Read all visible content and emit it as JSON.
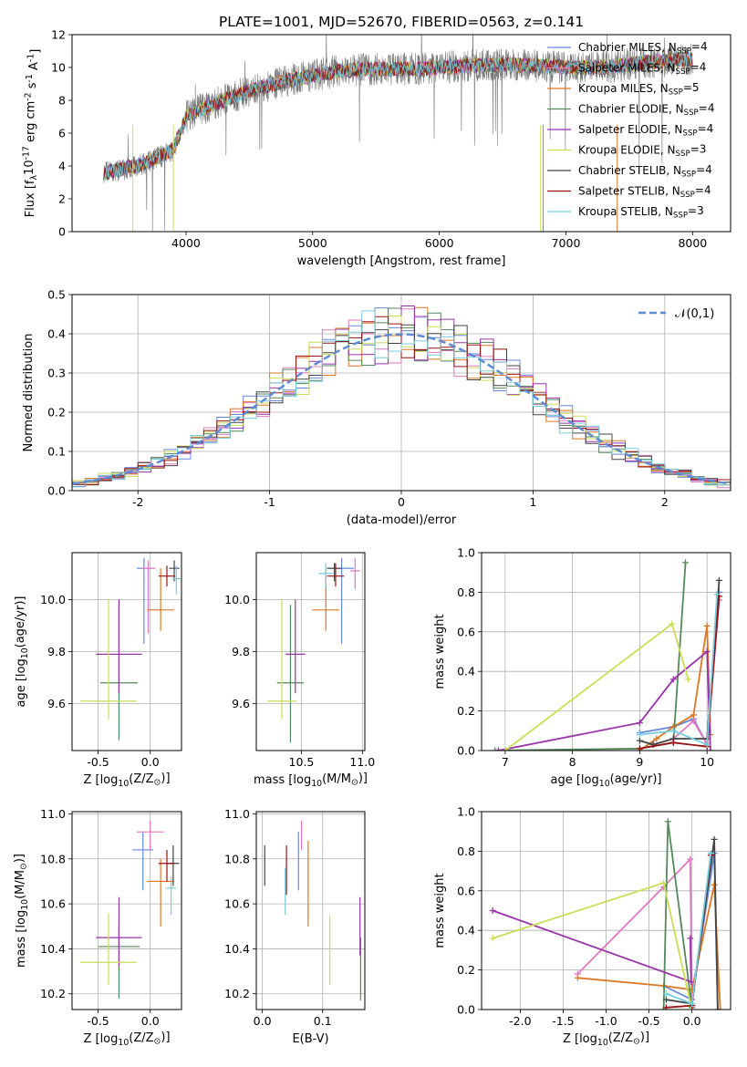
{
  "figure_title": "PLATE=1001, MJD=52670, FIBERID=0563, z=0.141",
  "colors": {
    "Chabrier MILES": "#6688dd",
    "Salpeter MILES": "#e377c2",
    "Kroupa MILES": "#dd7722",
    "Chabrier ELODIE": "#55885a",
    "Salpeter ELODIE": "#9933aa",
    "Kroupa ELODIE": "#ccdd55",
    "Chabrier STELIB": "#444444",
    "Salpeter STELIB": "#991111",
    "Kroupa STELIB": "#77ccdd"
  },
  "chart_data": [
    {
      "id": "spectrum",
      "type": "line",
      "title": "",
      "xlabel": "wavelength [Angstrom, rest frame]",
      "ylabel": "Flux [f$_\\lambda$10$^{-17}$ erg cm$^{-2}$ s$^{-1}$ A$^{-1}$]",
      "xlim": [
        3100,
        8300
      ],
      "ylim": [
        0,
        12
      ],
      "xticks": [
        4000,
        5000,
        6000,
        7000,
        8000
      ],
      "yticks": [
        0,
        2,
        4,
        6,
        8,
        10,
        12
      ],
      "grid": false,
      "legend": "right",
      "data_envelope": {
        "wavelength": [
          3350,
          3500,
          3700,
          3900,
          4000,
          4100,
          4300,
          4500,
          4800,
          5000,
          5200,
          5500,
          5800,
          6000,
          6200,
          6500,
          6800,
          7000,
          7300,
          7600,
          8000
        ],
        "model_flux": [
          3.6,
          3.8,
          4.2,
          5.0,
          7.0,
          7.4,
          8.0,
          8.6,
          9.2,
          9.5,
          9.8,
          9.9,
          9.9,
          10.0,
          10.1,
          10.2,
          10.1,
          10.0,
          10.0,
          10.3,
          10.5
        ]
      },
      "series": [
        {
          "name": "Chabrier MILES, N$_{SSP}$=4"
        },
        {
          "name": "Salpeter MILES, N$_{SSP}$=4"
        },
        {
          "name": "Kroupa MILES, N$_{SSP}$=5"
        },
        {
          "name": "Chabrier ELODIE, N$_{SSP}$=4"
        },
        {
          "name": "Salpeter ELODIE, N$_{SSP}$=4"
        },
        {
          "name": "Kroupa ELODIE, N$_{SSP}$=3"
        },
        {
          "name": "Chabrier STELIB, N$_{SSP}$=4"
        },
        {
          "name": "Salpeter STELIB, N$_{SSP}$=4"
        },
        {
          "name": "Kroupa STELIB, N$_{SSP}$=3"
        }
      ]
    },
    {
      "id": "residuals",
      "type": "line",
      "xlabel": "(data-model)/error",
      "ylabel": "Normed distribution",
      "xlim": [
        -2.5,
        2.5
      ],
      "ylim": [
        0,
        0.5
      ],
      "xticks": [
        -2,
        -1,
        0,
        1,
        2
      ],
      "yticks": [
        0.0,
        0.1,
        0.2,
        0.3,
        0.4,
        0.5
      ],
      "grid": true,
      "legend": "top-right",
      "reference_curve": {
        "name": "$\\mathcal{N}(0,1)$",
        "mean": 0,
        "sigma": 1
      },
      "bin_width": 0.1,
      "approx_histogram_envelope": "normal(0,1) with scatter ~0.03"
    },
    {
      "id": "age_vs_Z",
      "type": "scatter",
      "xlabel": "Z [log$_{10}$(Z/Z$_\\odot$)]",
      "ylabel": "age  [log$_{10}$(age/yr)]",
      "xlim": [
        -0.75,
        0.3
      ],
      "ylim": [
        9.42,
        10.18
      ],
      "xticks": [
        -0.5,
        0.0
      ],
      "yticks": [
        9.6,
        9.8,
        10.0
      ],
      "grid": true,
      "points": [
        {
          "model": "Chabrier MILES",
          "x": -0.06,
          "y": 10.12,
          "xerr": 0.07,
          "yerr": [
            0.29,
            0.04
          ]
        },
        {
          "model": "Salpeter MILES",
          "x": -0.02,
          "y": 10.12,
          "xerr": 0.07,
          "yerr": [
            0.25,
            0.03
          ]
        },
        {
          "model": "Kroupa MILES",
          "x": 0.1,
          "y": 9.96,
          "xerr": 0.13,
          "yerr": [
            0.08,
            0.16
          ]
        },
        {
          "model": "Chabrier ELODIE",
          "x": -0.3,
          "y": 9.68,
          "xerr": 0.18,
          "yerr": [
            0.22,
            0.3
          ]
        },
        {
          "model": "Salpeter ELODIE",
          "x": -0.3,
          "y": 9.79,
          "xerr": 0.22,
          "yerr": [
            0.15,
            0.21
          ]
        },
        {
          "model": "Kroupa ELODIE",
          "x": -0.4,
          "y": 9.61,
          "xerr": 0.27,
          "yerr": [
            0.07,
            0.39
          ]
        },
        {
          "model": "Chabrier STELIB",
          "x": 0.23,
          "y": 10.12,
          "xerr": 0.05,
          "yerr": [
            0.05,
            0.03
          ]
        },
        {
          "model": "Salpeter STELIB",
          "x": 0.16,
          "y": 10.09,
          "xerr": 0.08,
          "yerr": [
            0.04,
            0.04
          ]
        },
        {
          "model": "Kroupa STELIB",
          "x": 0.25,
          "y": 10.08,
          "xerr": 0.04,
          "yerr": [
            0.06,
            0.05
          ]
        }
      ]
    },
    {
      "id": "age_vs_mass",
      "type": "scatter",
      "xlabel": "mass [log$_{10}$(M/M$_\\odot$)]",
      "ylabel": "",
      "xlim": [
        10.13,
        11.02
      ],
      "ylim": [
        9.42,
        10.18
      ],
      "xticks": [
        10.5,
        11.0
      ],
      "yticks": [
        9.6,
        9.8,
        10.0
      ],
      "grid": true,
      "points": [
        {
          "model": "Chabrier MILES",
          "x": 10.83,
          "y": 10.12,
          "xerr": 0.1,
          "yerr": [
            0.29,
            0.04
          ]
        },
        {
          "model": "Salpeter MILES",
          "x": 10.94,
          "y": 10.11,
          "xerr": 0.04,
          "yerr": [
            0.07,
            0.05
          ]
        },
        {
          "model": "Kroupa MILES",
          "x": 10.7,
          "y": 9.96,
          "xerr": 0.11,
          "yerr": [
            0.08,
            0.16
          ]
        },
        {
          "model": "Chabrier ELODIE",
          "x": 10.41,
          "y": 9.68,
          "xerr": 0.11,
          "yerr": [
            0.23,
            0.3
          ]
        },
        {
          "model": "Salpeter ELODIE",
          "x": 10.45,
          "y": 9.79,
          "xerr": 0.08,
          "yerr": [
            0.15,
            0.21
          ]
        },
        {
          "model": "Kroupa ELODIE",
          "x": 10.34,
          "y": 9.61,
          "xerr": 0.12,
          "yerr": [
            0.07,
            0.39
          ]
        },
        {
          "model": "Chabrier STELIB",
          "x": 10.77,
          "y": 10.12,
          "xerr": 0.06,
          "yerr": [
            0.05,
            0.02
          ]
        },
        {
          "model": "Salpeter STELIB",
          "x": 10.78,
          "y": 10.09,
          "xerr": 0.07,
          "yerr": [
            0.04,
            0.05
          ]
        },
        {
          "model": "Kroupa STELIB",
          "x": 10.7,
          "y": 10.1,
          "xerr": 0.06,
          "yerr": [
            0.06,
            0.04
          ]
        }
      ]
    },
    {
      "id": "age_weights",
      "type": "line",
      "xlabel": "age  [log$_{10}$(age/yr)]",
      "ylabel": "mass weight",
      "xlim": [
        6.65,
        10.35
      ],
      "ylim": [
        0,
        1.0
      ],
      "xticks": [
        7,
        8,
        9,
        10
      ],
      "yticks": [
        0.0,
        0.2,
        0.4,
        0.6,
        0.8,
        1.0
      ],
      "grid": true,
      "series": [
        {
          "model": "Chabrier MILES",
          "x": [
            9.0,
            9.5,
            9.8,
            10.0,
            10.18
          ],
          "y": [
            0.09,
            0.12,
            0.16,
            0.03,
            0.8
          ]
        },
        {
          "model": "Salpeter MILES",
          "x": [
            9.5,
            9.8,
            10.0,
            10.18
          ],
          "y": [
            0.06,
            0.15,
            0.03,
            0.76
          ]
        },
        {
          "model": "Kroupa MILES",
          "x": [
            9.0,
            9.25,
            9.5,
            9.8,
            10.0,
            10.05
          ],
          "y": [
            0.0,
            0.06,
            0.12,
            0.18,
            0.63,
            0.08
          ]
        },
        {
          "model": "Chabrier ELODIE",
          "x": [
            6.85,
            9.0,
            9.5,
            9.68
          ],
          "y": [
            0.0,
            0.01,
            0.04,
            0.95
          ]
        },
        {
          "model": "Salpeter ELODIE",
          "x": [
            6.9,
            9.0,
            9.5,
            10.0,
            10.05
          ],
          "y": [
            0.0,
            0.14,
            0.36,
            0.5,
            0.0
          ]
        },
        {
          "model": "Kroupa ELODIE",
          "x": [
            7.0,
            9.48,
            9.72
          ],
          "y": [
            0.0,
            0.64,
            0.36
          ]
        },
        {
          "model": "Chabrier STELIB",
          "x": [
            9.0,
            9.2,
            9.5,
            10.0,
            10.18
          ],
          "y": [
            0.05,
            0.03,
            0.06,
            0.06,
            0.86
          ]
        },
        {
          "model": "Salpeter STELIB",
          "x": [
            9.0,
            9.5,
            10.0,
            10.18
          ],
          "y": [
            0.01,
            0.04,
            0.02,
            0.78
          ]
        },
        {
          "model": "Kroupa STELIB",
          "x": [
            9.0,
            9.5,
            10.0,
            10.15
          ],
          "y": [
            0.08,
            0.1,
            0.03,
            0.79
          ]
        }
      ]
    },
    {
      "id": "mass_vs_Z",
      "type": "scatter",
      "xlabel": "Z [log$_{10}$(Z/Z$_\\odot$)]",
      "ylabel": "mass [log$_{10}$(M/M$_\\odot$)]",
      "xlim": [
        -0.75,
        0.3
      ],
      "ylim": [
        10.13,
        11.01
      ],
      "xticks": [
        -0.5,
        0.0
      ],
      "yticks": [
        10.2,
        10.4,
        10.6,
        10.8,
        11.0
      ],
      "grid": true,
      "points": [
        {
          "model": "Chabrier MILES",
          "x": -0.07,
          "y": 10.84,
          "xerr": 0.1,
          "yerr": [
            0.18,
            0.08
          ]
        },
        {
          "model": "Salpeter MILES",
          "x": 0.0,
          "y": 10.92,
          "xerr": 0.13,
          "yerr": [
            0.08,
            0.05
          ]
        },
        {
          "model": "Kroupa MILES",
          "x": 0.1,
          "y": 10.7,
          "xerr": 0.13,
          "yerr": [
            0.2,
            0.1
          ]
        },
        {
          "model": "Chabrier ELODIE",
          "x": -0.3,
          "y": 10.41,
          "xerr": 0.2,
          "yerr": [
            0.23,
            0.11
          ]
        },
        {
          "model": "Salpeter ELODIE",
          "x": -0.3,
          "y": 10.45,
          "xerr": 0.22,
          "yerr": [
            0.13,
            0.18
          ]
        },
        {
          "model": "Kroupa ELODIE",
          "x": -0.4,
          "y": 10.34,
          "xerr": 0.27,
          "yerr": [
            0.1,
            0.22
          ]
        },
        {
          "model": "Chabrier STELIB",
          "x": 0.22,
          "y": 10.78,
          "xerr": 0.06,
          "yerr": [
            0.1,
            0.08
          ]
        },
        {
          "model": "Salpeter STELIB",
          "x": 0.16,
          "y": 10.78,
          "xerr": 0.08,
          "yerr": [
            0.08,
            0.06
          ]
        },
        {
          "model": "Kroupa STELIB",
          "x": 0.2,
          "y": 10.67,
          "xerr": 0.05,
          "yerr": [
            0.12,
            0.05
          ]
        }
      ]
    },
    {
      "id": "mass_vs_EBV",
      "type": "scatter",
      "xlabel": "E(B-V)",
      "ylabel": "",
      "xlim": [
        -0.01,
        0.17
      ],
      "ylim": [
        10.13,
        11.01
      ],
      "xticks": [
        0.0,
        0.1
      ],
      "yticks": [
        10.2,
        10.4,
        10.6,
        10.8,
        11.0
      ],
      "grid": true,
      "points": [
        {
          "model": "Chabrier MILES",
          "x": 0.06,
          "y": 10.84,
          "yerr": [
            0.18,
            0.08
          ]
        },
        {
          "model": "Salpeter MILES",
          "x": 0.065,
          "y": 10.92,
          "yerr": [
            0.08,
            0.05
          ]
        },
        {
          "model": "Kroupa MILES",
          "x": 0.076,
          "y": 10.7,
          "yerr": [
            0.2,
            0.18
          ]
        },
        {
          "model": "Chabrier ELODIE",
          "x": 0.163,
          "y": 10.35,
          "yerr": [
            0.18,
            0.1
          ]
        },
        {
          "model": "Salpeter ELODIE",
          "x": 0.162,
          "y": 10.45,
          "yerr": [
            0.08,
            0.18
          ]
        },
        {
          "model": "Kroupa ELODIE",
          "x": 0.112,
          "y": 10.4,
          "yerr": [
            0.16,
            0.15
          ]
        },
        {
          "model": "Chabrier STELIB",
          "x": 0.004,
          "y": 10.78,
          "yerr": [
            0.1,
            0.08
          ]
        },
        {
          "model": "Salpeter STELIB",
          "x": 0.04,
          "y": 10.78,
          "yerr": [
            0.14,
            0.08
          ]
        },
        {
          "model": "Kroupa STELIB",
          "x": 0.038,
          "y": 10.67,
          "yerr": [
            0.12,
            0.09
          ]
        }
      ]
    },
    {
      "id": "Z_weights",
      "type": "line",
      "xlabel": "Z [log$_{10}$(Z/Z$_\\odot$)]",
      "ylabel": "mass weight",
      "xlim": [
        -2.45,
        0.45
      ],
      "ylim": [
        0,
        1.0
      ],
      "xticks": [
        -2.0,
        -1.5,
        -1.0,
        -0.5,
        0.0
      ],
      "yticks": [
        0.0,
        0.2,
        0.4,
        0.6,
        0.8,
        1.0
      ],
      "grid": true,
      "series": [
        {
          "model": "Chabrier MILES",
          "x": [
            -0.33,
            0.0,
            0.26,
            0.3
          ],
          "y": [
            0.12,
            0.05,
            0.79,
            0.0
          ]
        },
        {
          "model": "Salpeter MILES",
          "x": [
            -1.33,
            -0.33,
            -0.02,
            0.0
          ],
          "y": [
            0.18,
            0.62,
            0.76,
            0.02
          ]
        },
        {
          "model": "Kroupa MILES",
          "x": [
            -1.33,
            -0.33,
            0.0,
            0.26,
            0.33
          ],
          "y": [
            0.16,
            0.12,
            0.1,
            0.63,
            0.0
          ]
        },
        {
          "model": "Chabrier ELODIE",
          "x": [
            -0.33,
            -0.28,
            0.0
          ],
          "y": [
            0.0,
            0.95,
            0.01
          ]
        },
        {
          "model": "Salpeter ELODIE",
          "x": [
            -2.32,
            -0.01,
            -0.02
          ],
          "y": [
            0.5,
            0.14,
            0.36
          ]
        },
        {
          "model": "Kroupa ELODIE",
          "x": [
            -2.32,
            -0.33,
            0.0
          ],
          "y": [
            0.36,
            0.64,
            0.0
          ]
        },
        {
          "model": "Chabrier STELIB",
          "x": [
            -0.3,
            0.0,
            0.26,
            0.3
          ],
          "y": [
            0.05,
            0.03,
            0.86,
            0.0
          ]
        },
        {
          "model": "Salpeter STELIB",
          "x": [
            -0.3,
            0.0,
            0.22
          ],
          "y": [
            0.01,
            0.02,
            0.78
          ]
        },
        {
          "model": "Kroupa STELIB",
          "x": [
            -0.3,
            0.0,
            0.22
          ],
          "y": [
            0.08,
            0.03,
            0.79
          ]
        }
      ]
    }
  ]
}
